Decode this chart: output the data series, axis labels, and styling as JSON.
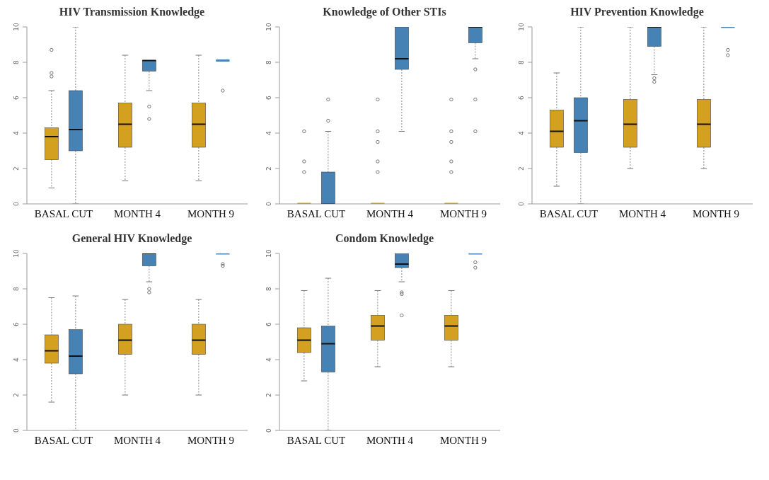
{
  "chart_data": [
    {
      "type": "box",
      "title": "HIV Transmission Knowledge",
      "categories": [
        "BASAL CUT",
        "MONTH 4",
        "MONTH 9"
      ],
      "ylim": [
        0,
        10
      ],
      "yticks": [
        0,
        2,
        4,
        6,
        8,
        10
      ],
      "series": [
        {
          "color": "#d4a020",
          "boxes": [
            {
              "low": 0.9,
              "q1": 2.5,
              "median": 3.8,
              "q3": 4.3,
              "high": 6.4,
              "outliers": [
                8.7,
                7.4,
                7.2
              ]
            },
            {
              "low": 1.3,
              "q1": 3.2,
              "median": 4.5,
              "q3": 5.7,
              "high": 8.4
            },
            {
              "low": 1.3,
              "q1": 3.2,
              "median": 4.5,
              "q3": 5.7,
              "high": 8.4
            }
          ]
        },
        {
          "color": "#4682b4",
          "boxes": [
            {
              "low": 0,
              "q1": 3,
              "median": 4.2,
              "q3": 6.4,
              "high": 10
            },
            {
              "low": 6.4,
              "q1": 7.5,
              "median": 8.1,
              "q3": 8.1,
              "high": 8.1,
              "outliers": [
                5.5,
                4.8
              ]
            },
            {
              "low": 8.1,
              "q1": 8.1,
              "median": 8.1,
              "q3": 8.1,
              "high": 8.1,
              "outliers": [
                6.4
              ]
            }
          ]
        }
      ]
    },
    {
      "type": "box",
      "title": "Knowledge of Other STIs",
      "categories": [
        "BASAL CUT",
        "MONTH 4",
        "MONTH 9"
      ],
      "ylim": [
        0,
        10
      ],
      "yticks": [
        0,
        2,
        4,
        6,
        8,
        10
      ],
      "series": [
        {
          "color": "#d4a020",
          "boxes": [
            {
              "low": 0,
              "q1": 0,
              "median": 0,
              "q3": 0,
              "high": 0,
              "outliers": [
                4.1,
                2.4,
                1.8
              ]
            },
            {
              "low": 0,
              "q1": 0,
              "median": 0,
              "q3": 0,
              "high": 0,
              "outliers": [
                5.9,
                4.1,
                3.5,
                2.4,
                1.8
              ]
            },
            {
              "low": 0,
              "q1": 0,
              "median": 0,
              "q3": 0,
              "high": 0,
              "outliers": [
                5.9,
                4.1,
                3.5,
                2.4,
                1.8
              ]
            }
          ]
        },
        {
          "color": "#4682b4",
          "boxes": [
            {
              "low": 0,
              "q1": 0,
              "median": 0,
              "q3": 1.8,
              "high": 4.1,
              "outliers": [
                5.9,
                4.7
              ]
            },
            {
              "low": 4.1,
              "q1": 7.6,
              "median": 8.2,
              "q3": 10,
              "high": 10
            },
            {
              "low": 8.2,
              "q1": 9.1,
              "median": 10,
              "q3": 10,
              "high": 10,
              "outliers": [
                7.6,
                5.9,
                4.1
              ]
            }
          ]
        }
      ]
    },
    {
      "type": "box",
      "title": "HIV Prevention Knowledge",
      "categories": [
        "BASAL CUT",
        "MONTH 4",
        "MONTH 9"
      ],
      "ylim": [
        0,
        10
      ],
      "yticks": [
        0,
        2,
        4,
        6,
        8,
        10
      ],
      "series": [
        {
          "color": "#d4a020",
          "boxes": [
            {
              "low": 1,
              "q1": 3.2,
              "median": 4.1,
              "q3": 5.3,
              "high": 7.4
            },
            {
              "low": 2,
              "q1": 3.2,
              "median": 4.5,
              "q3": 5.9,
              "high": 10
            },
            {
              "low": 2,
              "q1": 3.2,
              "median": 4.5,
              "q3": 5.9,
              "high": 10
            }
          ]
        },
        {
          "color": "#4682b4",
          "boxes": [
            {
              "low": 0,
              "q1": 2.9,
              "median": 4.7,
              "q3": 6,
              "high": 10
            },
            {
              "low": 7.3,
              "q1": 8.9,
              "median": 10,
              "q3": 10,
              "high": 10,
              "outliers": [
                7.1,
                6.9
              ]
            },
            {
              "low": 10,
              "q1": 10,
              "median": 10,
              "q3": 10,
              "high": 10,
              "outliers": [
                8.7,
                8.4
              ]
            }
          ]
        }
      ]
    },
    {
      "type": "box",
      "title": "General HIV Knowledge",
      "categories": [
        "BASAL CUT",
        "MONTH 4",
        "MONTH 9"
      ],
      "ylim": [
        0,
        10
      ],
      "yticks": [
        0,
        2,
        4,
        6,
        8,
        10
      ],
      "series": [
        {
          "color": "#d4a020",
          "boxes": [
            {
              "low": 1.6,
              "q1": 3.8,
              "median": 4.5,
              "q3": 5.4,
              "high": 7.5
            },
            {
              "low": 2,
              "q1": 4.3,
              "median": 5.1,
              "q3": 6,
              "high": 7.4
            },
            {
              "low": 2,
              "q1": 4.3,
              "median": 5.1,
              "q3": 6,
              "high": 7.4
            }
          ]
        },
        {
          "color": "#4682b4",
          "boxes": [
            {
              "low": 0,
              "q1": 3.2,
              "median": 4.2,
              "q3": 5.7,
              "high": 7.6
            },
            {
              "low": 8.4,
              "q1": 9.3,
              "median": 10,
              "q3": 10,
              "high": 10,
              "outliers": [
                8,
                7.8
              ]
            },
            {
              "low": 10,
              "q1": 10,
              "median": 10,
              "q3": 10,
              "high": 10,
              "outliers": [
                9.4,
                9.3
              ]
            }
          ]
        }
      ]
    },
    {
      "type": "box",
      "title": "Condom Knowledge",
      "categories": [
        "BASAL CUT",
        "MONTH 4",
        "MONTH 9"
      ],
      "ylim": [
        0,
        10
      ],
      "yticks": [
        0,
        2,
        4,
        6,
        8,
        10
      ],
      "series": [
        {
          "color": "#d4a020",
          "boxes": [
            {
              "low": 2.8,
              "q1": 4.4,
              "median": 5.1,
              "q3": 5.8,
              "high": 7.9
            },
            {
              "low": 3.6,
              "q1": 5.1,
              "median": 5.9,
              "q3": 6.5,
              "high": 7.9
            },
            {
              "low": 3.6,
              "q1": 5.1,
              "median": 5.9,
              "q3": 6.5,
              "high": 7.9
            }
          ]
        },
        {
          "color": "#4682b4",
          "boxes": [
            {
              "low": 0,
              "q1": 3.3,
              "median": 4.9,
              "q3": 5.9,
              "high": 8.6
            },
            {
              "low": 8.4,
              "q1": 9.2,
              "median": 9.4,
              "q3": 10,
              "high": 10,
              "outliers": [
                7.8,
                7.7,
                6.5
              ]
            },
            {
              "low": 10,
              "q1": 10,
              "median": 10,
              "q3": 10,
              "high": 10,
              "outliers": [
                9.5,
                9.2
              ]
            }
          ]
        }
      ]
    }
  ]
}
